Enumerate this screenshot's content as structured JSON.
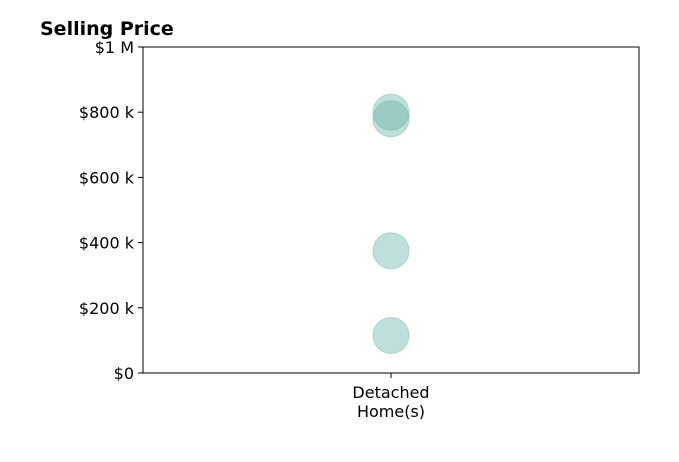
{
  "chart_data": {
    "type": "scatter",
    "title": "Selling Price",
    "xlabel": "",
    "ylabel": "",
    "categories": [
      "Detached Home(s)"
    ],
    "category_label_lines": [
      "Detached",
      "Home(s)"
    ],
    "points": [
      {
        "category": "Detached Home(s)",
        "y": 800000
      },
      {
        "category": "Detached Home(s)",
        "y": 780000
      },
      {
        "category": "Detached Home(s)",
        "y": 375000
      },
      {
        "category": "Detached Home(s)",
        "y": 115000
      }
    ],
    "ylim": [
      0,
      1000000
    ],
    "yticks": [
      0,
      200000,
      400000,
      600000,
      800000,
      1000000
    ],
    "ytick_labels": [
      "$0",
      "$200 k",
      "$400 k",
      "$600 k",
      "$800 k",
      "$1 M"
    ],
    "grid": false,
    "marker_color": "#66b2a8",
    "marker_opacity": 0.42
  }
}
